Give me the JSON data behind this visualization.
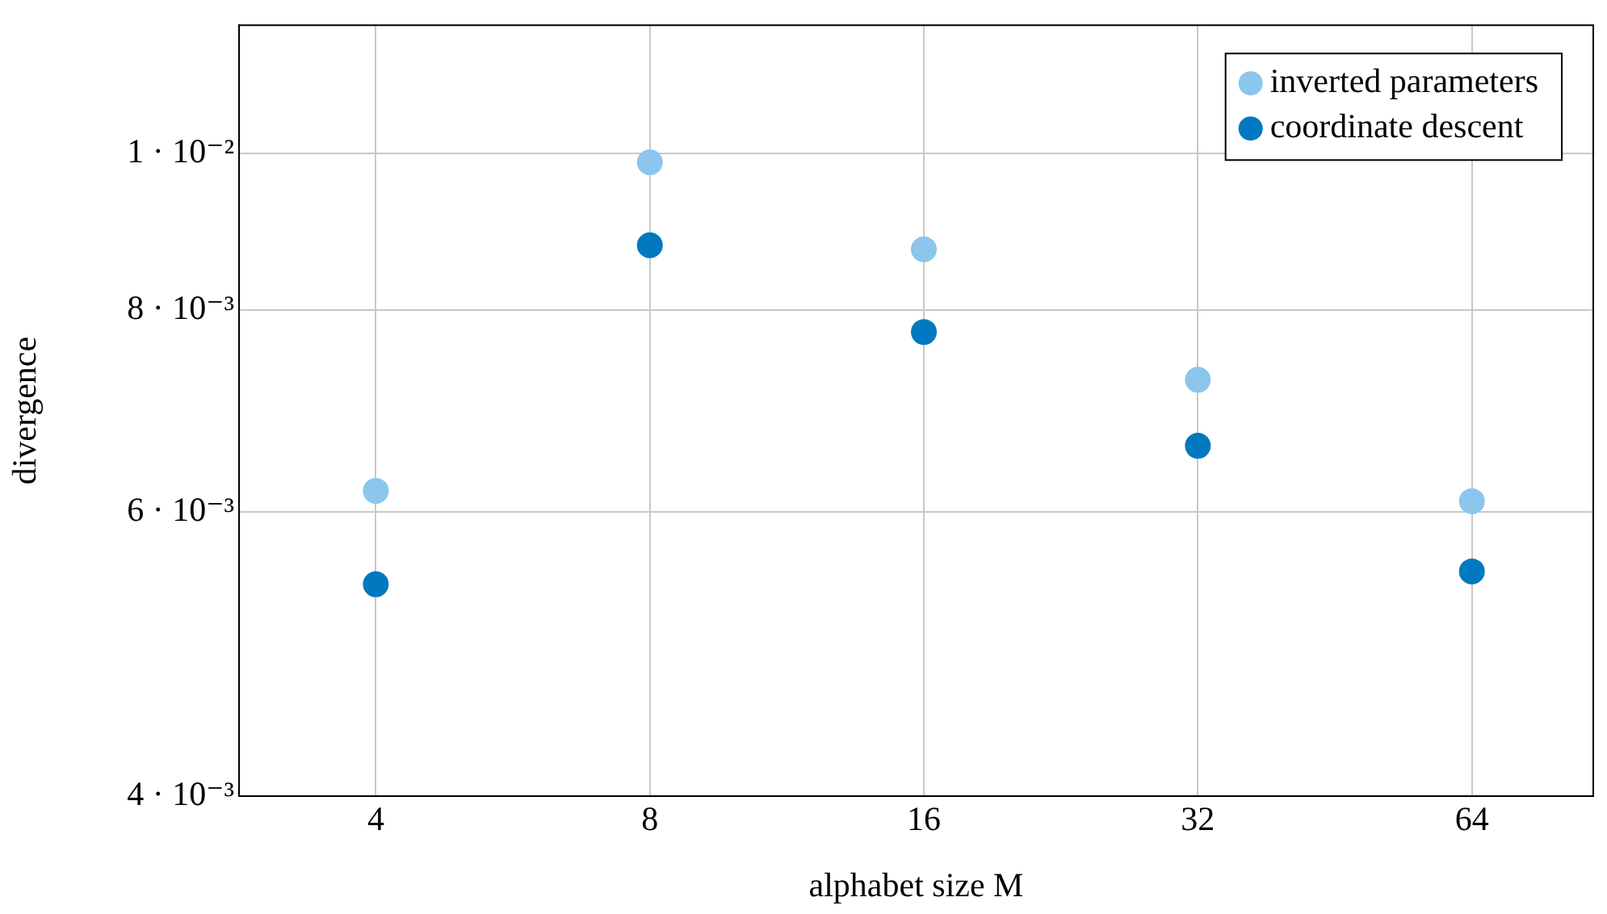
{
  "chart_data": {
    "type": "scatter",
    "xlabel": "alphabet size M",
    "ylabel": "divergence",
    "x": [
      4,
      8,
      16,
      32,
      64
    ],
    "series": [
      {
        "name": "inverted parameters",
        "color": "#8cc6ec",
        "values": [
          0.00618,
          0.00987,
          0.00872,
          0.00724,
          0.00609
        ]
      },
      {
        "name": "coordinate descent",
        "color": "#0079c0",
        "values": [
          0.00541,
          0.00877,
          0.00775,
          0.00659,
          0.00551
        ]
      }
    ],
    "log": "xy",
    "xlim": [
      2.83,
      87
    ],
    "xticks": [
      4,
      8,
      16,
      32,
      64
    ],
    "ylim": [
      0.004,
      0.012
    ],
    "yticks": [
      {
        "value": 0.004,
        "label": "4 · 10⁻³"
      },
      {
        "value": 0.006,
        "label": "6 · 10⁻³"
      },
      {
        "value": 0.008,
        "label": "8 · 10⁻³"
      },
      {
        "value": 0.01,
        "label": "1 · 10⁻²"
      }
    ],
    "grid": true,
    "legend": "top right",
    "marker": "circle"
  }
}
